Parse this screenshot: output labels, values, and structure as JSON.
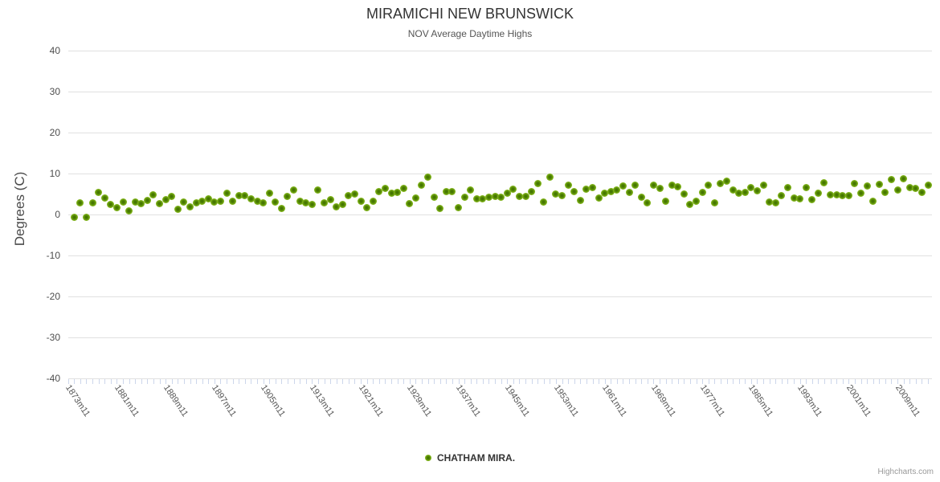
{
  "header": {
    "title": "MIRAMICHI NEW BRUNSWICK",
    "subtitle": "NOV Average Daytime Highs"
  },
  "y_axis": {
    "title": "Degrees (C)"
  },
  "legend": {
    "items": [
      {
        "label": "CHATHAM MIRA.",
        "color": "#86b91e"
      }
    ]
  },
  "credit": {
    "label": "Highcharts.com"
  },
  "chart_data": {
    "type": "scatter",
    "title": "MIRAMICHI NEW BRUNSWICK",
    "subtitle": "NOV Average Daytime Highs",
    "xlabel": "",
    "ylabel": "Degrees (C)",
    "ylim": [
      -40,
      40
    ],
    "ytick_step": 10,
    "grid": true,
    "legend_position": "bottom-center",
    "x_tick_labels": [
      "1873m11",
      "1881m11",
      "1889m11",
      "1897m11",
      "1905m11",
      "1913m11",
      "1921m11",
      "1929m11",
      "1937m11",
      "1945m11",
      "1953m11",
      "1961m11",
      "1969m11",
      "1977m11",
      "1985m11",
      "1993m11",
      "2001m11",
      "2009m11"
    ],
    "x_label_every": 8,
    "colors": {
      "point": "#86b91e",
      "point_core": "#3f6e00",
      "gridline": "#e0e0e0",
      "tick": "#ccd6eb",
      "title": "#333333",
      "subtitle": "#555555",
      "axis_label": "#555555",
      "credit": "#999999"
    },
    "series": [
      {
        "name": "CHATHAM MIRA.",
        "color": "#86b91e",
        "start_year": 1873,
        "x_suffix": "m11",
        "values": [
          -0.6,
          2.8,
          -0.6,
          2.9,
          5.3,
          4.0,
          2.4,
          1.6,
          3.0,
          0.9,
          3.0,
          2.7,
          3.5,
          4.9,
          2.6,
          3.6,
          4.4,
          1.2,
          3.0,
          1.9,
          2.8,
          3.3,
          3.8,
          3.0,
          3.2,
          5.1,
          3.3,
          4.7,
          4.7,
          3.8,
          3.2,
          2.8,
          5.1,
          3.0,
          1.4,
          4.5,
          6.0,
          3.3,
          2.8,
          2.4,
          6.0,
          2.8,
          3.7,
          1.9,
          2.4,
          4.7,
          5.0,
          3.2,
          1.6,
          3.2,
          5.6,
          6.3,
          5.1,
          5.3,
          6.3,
          2.7,
          4.1,
          7.1,
          9.2,
          4.3,
          1.5,
          5.6,
          5.6,
          1.7,
          4.3,
          5.9,
          3.8,
          3.8,
          4.3,
          4.5,
          4.2,
          5.1,
          6.2,
          4.5,
          4.5,
          5.6,
          7.6,
          3.0,
          9.1,
          5.0,
          4.7,
          7.1,
          5.6,
          3.5,
          6.1,
          6.5,
          4.1,
          5.2,
          5.6,
          6.0,
          6.9,
          5.4,
          7.1,
          4.3,
          2.8,
          7.1,
          6.3,
          3.3,
          7.1,
          6.8,
          5.0,
          2.4,
          3.2,
          5.4,
          7.1,
          2.8,
          7.6,
          8.1,
          6.0,
          5.2,
          5.3,
          6.5,
          5.8,
          7.1,
          3.0,
          2.8,
          4.7,
          6.5,
          4.1,
          3.9,
          6.5,
          3.7,
          5.2,
          7.8,
          4.8,
          4.8,
          4.7,
          4.7,
          7.6,
          5.2,
          7.0,
          3.2,
          7.4,
          5.4,
          8.6,
          6.0,
          8.7,
          6.5,
          6.3,
          5.4,
          7.1
        ]
      }
    ]
  }
}
